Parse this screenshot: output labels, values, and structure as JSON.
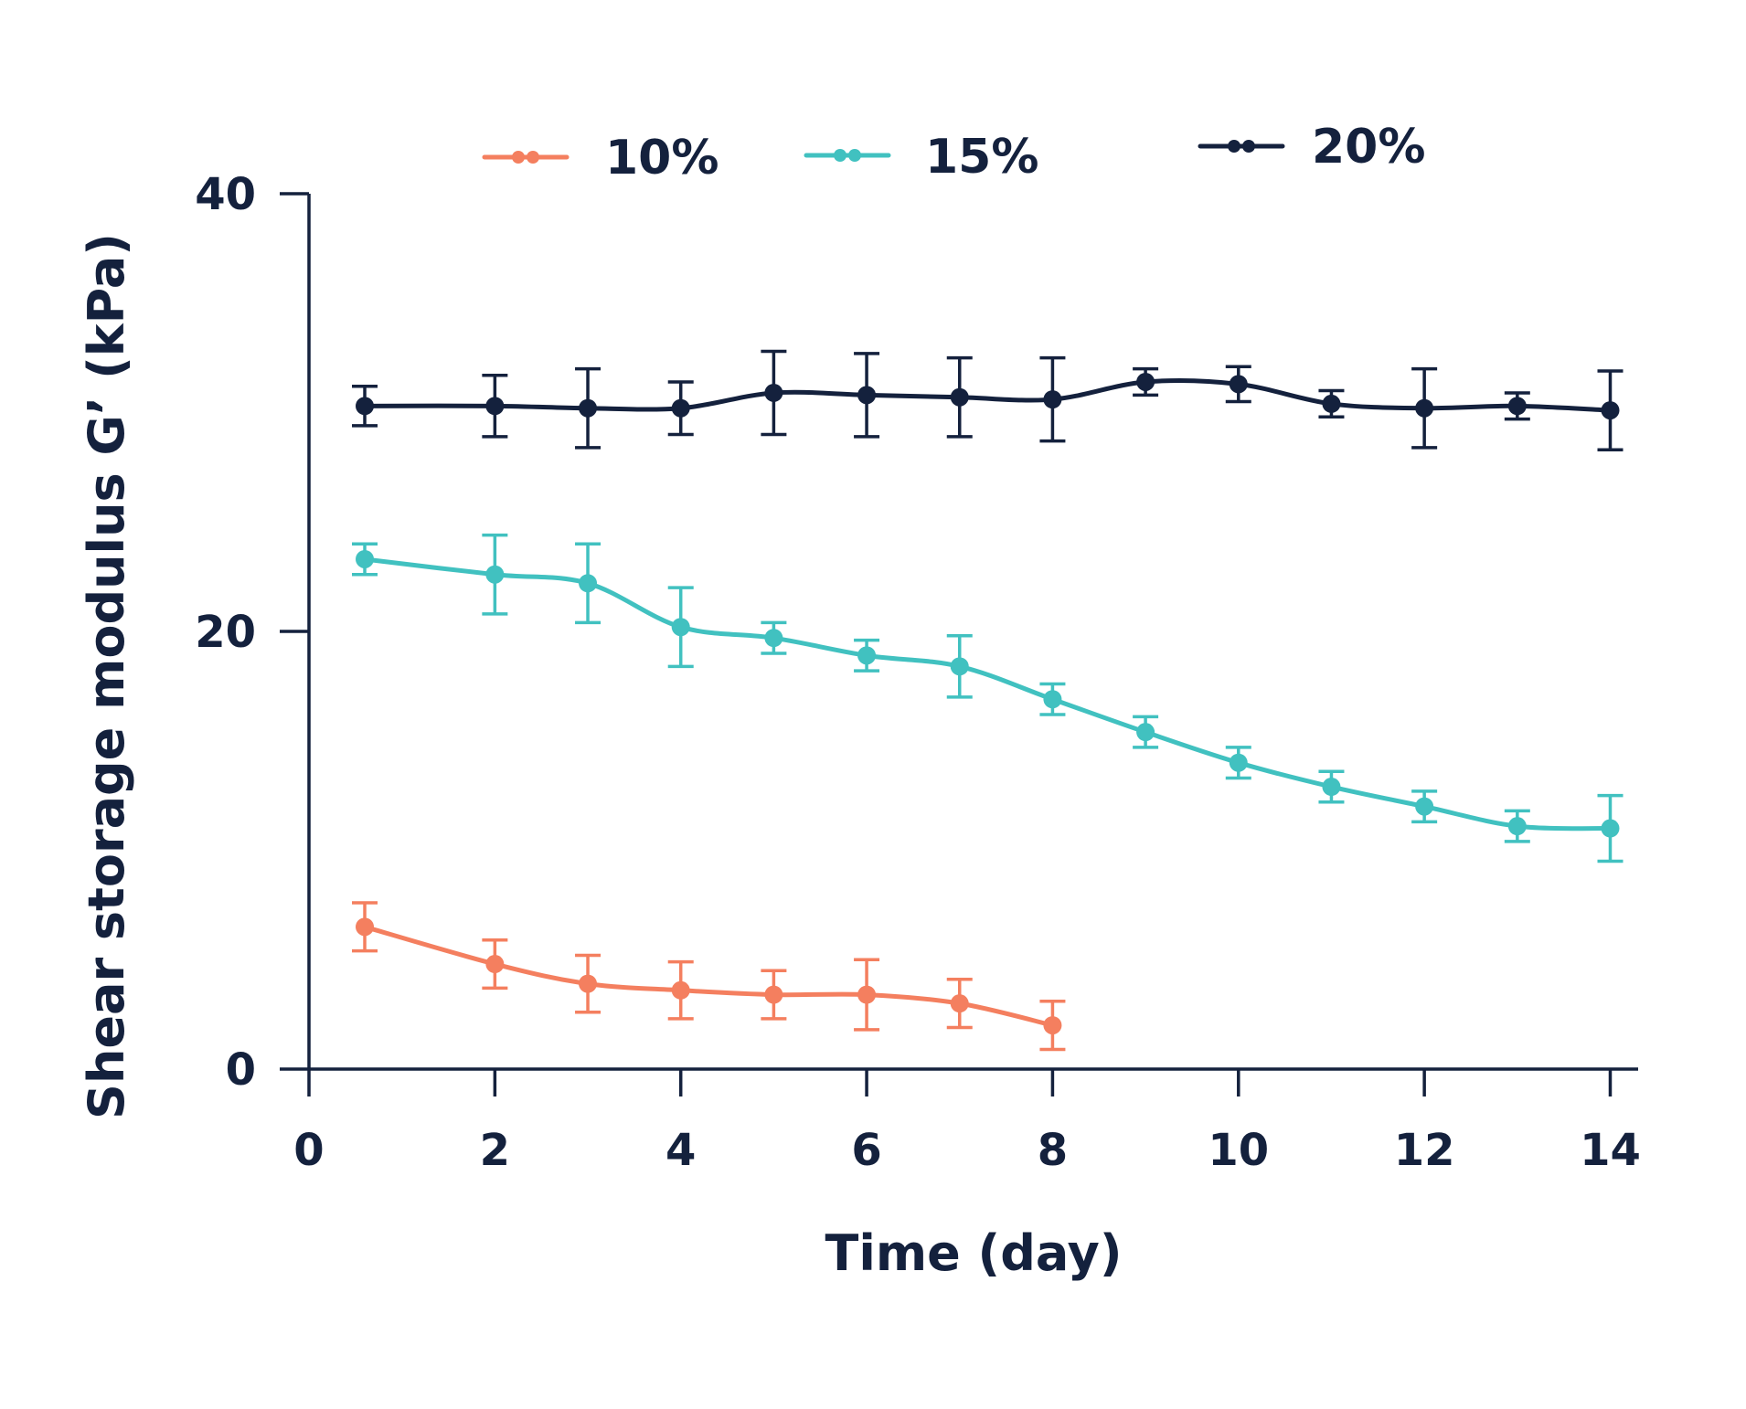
{
  "chart_data": {
    "type": "line",
    "title": "",
    "xlabel": "Time (day)",
    "ylabel": "Shear storage modulus G’ (kPa)",
    "xlim": [
      0,
      14.3
    ],
    "ylim": [
      0,
      40
    ],
    "xticks": [
      0,
      2,
      4,
      6,
      8,
      10,
      12,
      14
    ],
    "xtick_labels": [
      "0",
      "2",
      "4",
      "6",
      "8",
      "10",
      "12",
      "14"
    ],
    "yticks": [
      0,
      20,
      40
    ],
    "ytick_labels": [
      "0",
      "20",
      "40"
    ],
    "grid": false,
    "legend_position": "top",
    "error_bars": true,
    "smoothed": true,
    "series": [
      {
        "name": "10%",
        "color": "#f47f5f",
        "points": [
          {
            "x": 0.6,
            "y": 6.5,
            "err": 1.1
          },
          {
            "x": 2,
            "y": 4.8,
            "err": 1.1
          },
          {
            "x": 3,
            "y": 3.9,
            "err": 1.3
          },
          {
            "x": 4,
            "y": 3.6,
            "err": 1.3
          },
          {
            "x": 5,
            "y": 3.4,
            "err": 1.1
          },
          {
            "x": 6,
            "y": 3.4,
            "err": 1.6
          },
          {
            "x": 7,
            "y": 3.0,
            "err": 1.1
          },
          {
            "x": 8,
            "y": 2.0,
            "err": 1.1
          }
        ]
      },
      {
        "name": "15%",
        "color": "#41c1c0",
        "points": [
          {
            "x": 0.6,
            "y": 23.3,
            "err": 0.7
          },
          {
            "x": 2,
            "y": 22.6,
            "err": 1.8
          },
          {
            "x": 3,
            "y": 22.2,
            "err": 1.8
          },
          {
            "x": 4,
            "y": 20.2,
            "err": 1.8
          },
          {
            "x": 5,
            "y": 19.7,
            "err": 0.7
          },
          {
            "x": 6,
            "y": 18.9,
            "err": 0.7
          },
          {
            "x": 7,
            "y": 18.4,
            "err": 1.4
          },
          {
            "x": 8,
            "y": 16.9,
            "err": 0.7
          },
          {
            "x": 9,
            "y": 15.4,
            "err": 0.7
          },
          {
            "x": 10,
            "y": 14.0,
            "err": 0.7
          },
          {
            "x": 11,
            "y": 12.9,
            "err": 0.7
          },
          {
            "x": 12,
            "y": 12.0,
            "err": 0.7
          },
          {
            "x": 13,
            "y": 11.1,
            "err": 0.7
          },
          {
            "x": 14,
            "y": 11.0,
            "err": 1.5
          }
        ]
      },
      {
        "name": "20%",
        "color": "#14213d",
        "points": [
          {
            "x": 0.6,
            "y": 30.3,
            "err": 0.9
          },
          {
            "x": 2,
            "y": 30.3,
            "err": 1.4
          },
          {
            "x": 3,
            "y": 30.2,
            "err": 1.8
          },
          {
            "x": 4,
            "y": 30.2,
            "err": 1.2
          },
          {
            "x": 5,
            "y": 30.9,
            "err": 1.9
          },
          {
            "x": 6,
            "y": 30.8,
            "err": 1.9
          },
          {
            "x": 7,
            "y": 30.7,
            "err": 1.8
          },
          {
            "x": 8,
            "y": 30.6,
            "err": 1.9
          },
          {
            "x": 9,
            "y": 31.4,
            "err": 0.6
          },
          {
            "x": 10,
            "y": 31.3,
            "err": 0.8
          },
          {
            "x": 11,
            "y": 30.4,
            "err": 0.6
          },
          {
            "x": 12,
            "y": 30.2,
            "err": 1.8
          },
          {
            "x": 13,
            "y": 30.3,
            "err": 0.6
          },
          {
            "x": 14,
            "y": 30.1,
            "err": 1.8
          }
        ]
      }
    ]
  }
}
